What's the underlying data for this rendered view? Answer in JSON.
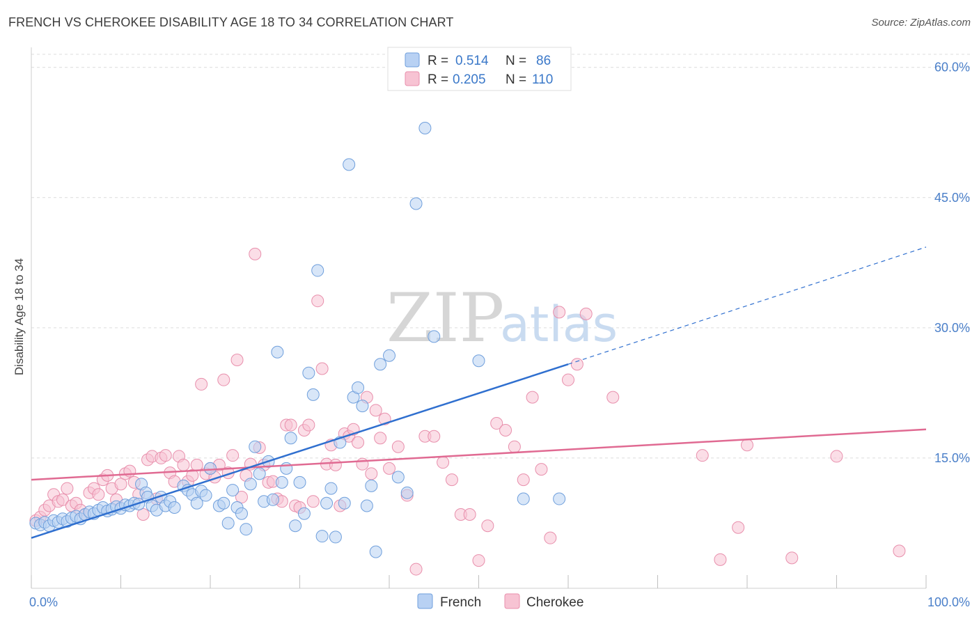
{
  "title": "FRENCH VS CHEROKEE DISABILITY AGE 18 TO 34 CORRELATION CHART",
  "source": "Source: ZipAtlas.com",
  "watermark": {
    "zip": "ZIP",
    "atlas": "atlas"
  },
  "stats": {
    "french": {
      "r_label": "R =",
      "r": "0.514",
      "n_label": "N =",
      "n": "86"
    },
    "cherokee": {
      "r_label": "R =",
      "r": "0.205",
      "n_label": "N =",
      "n": "110"
    }
  },
  "legend": {
    "french": "French",
    "cherokee": "Cherokee"
  },
  "colors": {
    "french_fill": "#b8d1f3",
    "french_stroke": "#6f9fdc",
    "french_line": "#2f6fcf",
    "cherokee_fill": "#f7c3d3",
    "cherokee_stroke": "#e88fac",
    "cherokee_line": "#e06a92",
    "axis_tick": "#4a7fc9",
    "grid": "#dcdcdc"
  },
  "chart_data": {
    "type": "scatter",
    "title": "FRENCH VS CHEROKEE DISABILITY AGE 18 TO 34 CORRELATION CHART",
    "xlabel": "",
    "ylabel": "Disability Age 18 to 34",
    "xlim": [
      0,
      100
    ],
    "ylim": [
      0,
      61.5
    ],
    "x_tick_labels": [
      "0.0%",
      "100.0%"
    ],
    "y_ticks": [
      15,
      30,
      45,
      60
    ],
    "y_tick_labels": [
      "15.0%",
      "30.0%",
      "45.0%",
      "60.0%"
    ],
    "grid": true,
    "legend_position": "bottom-center",
    "series": [
      {
        "name": "French",
        "points": [
          [
            0.5,
            7.5
          ],
          [
            1,
            7.3
          ],
          [
            1.5,
            7.6
          ],
          [
            2,
            7.2
          ],
          [
            2.5,
            7.8
          ],
          [
            3,
            7.6
          ],
          [
            3.5,
            8.0
          ],
          [
            4,
            7.7
          ],
          [
            4.5,
            8.1
          ],
          [
            5,
            8.3
          ],
          [
            5.5,
            8.0
          ],
          [
            6,
            8.5
          ],
          [
            6.5,
            8.8
          ],
          [
            7,
            8.6
          ],
          [
            7.5,
            9.0
          ],
          [
            8,
            9.3
          ],
          [
            8.5,
            8.9
          ],
          [
            9,
            9.1
          ],
          [
            9.5,
            9.4
          ],
          [
            10,
            9.2
          ],
          [
            10.5,
            9.6
          ],
          [
            11,
            9.5
          ],
          [
            11.5,
            9.8
          ],
          [
            12,
            9.7
          ],
          [
            12.3,
            12.0
          ],
          [
            12.8,
            11.0
          ],
          [
            13,
            10.5
          ],
          [
            13.5,
            9.5
          ],
          [
            14,
            9.0
          ],
          [
            14.5,
            10.5
          ],
          [
            15,
            9.5
          ],
          [
            15.5,
            10.0
          ],
          [
            16,
            9.3
          ],
          [
            17,
            11.8
          ],
          [
            17.5,
            11.3
          ],
          [
            18,
            10.8
          ],
          [
            18.5,
            9.8
          ],
          [
            19,
            11.2
          ],
          [
            19.5,
            10.7
          ],
          [
            20,
            13.8
          ],
          [
            21,
            9.5
          ],
          [
            21.5,
            9.8
          ],
          [
            22,
            7.5
          ],
          [
            22.5,
            11.3
          ],
          [
            23,
            9.3
          ],
          [
            23.5,
            8.6
          ],
          [
            24,
            6.8
          ],
          [
            24.5,
            12.0
          ],
          [
            25,
            16.3
          ],
          [
            25.5,
            13.2
          ],
          [
            26,
            10.0
          ],
          [
            26.5,
            14.6
          ],
          [
            27,
            10.2
          ],
          [
            27.5,
            27.2
          ],
          [
            28,
            12.2
          ],
          [
            28.5,
            13.8
          ],
          [
            29,
            17.3
          ],
          [
            29.5,
            7.2
          ],
          [
            30,
            12.2
          ],
          [
            30.5,
            8.6
          ],
          [
            31,
            24.8
          ],
          [
            31.5,
            22.3
          ],
          [
            32,
            36.6
          ],
          [
            32.5,
            6.0
          ],
          [
            33,
            9.8
          ],
          [
            33.5,
            11.5
          ],
          [
            34,
            5.9
          ],
          [
            34.5,
            16.8
          ],
          [
            35,
            9.8
          ],
          [
            35.5,
            48.8
          ],
          [
            36,
            22.0
          ],
          [
            36.5,
            23.1
          ],
          [
            37,
            21.0
          ],
          [
            37.5,
            9.5
          ],
          [
            38,
            11.8
          ],
          [
            38.5,
            4.2
          ],
          [
            39,
            25.8
          ],
          [
            40,
            26.8
          ],
          [
            41,
            12.8
          ],
          [
            42,
            11.0
          ],
          [
            43,
            44.3
          ],
          [
            44,
            53.0
          ],
          [
            45,
            29.0
          ],
          [
            50,
            26.2
          ],
          [
            55,
            10.3
          ],
          [
            59,
            10.3
          ]
        ]
      },
      {
        "name": "Cherokee",
        "points": [
          [
            0.5,
            7.8
          ],
          [
            1,
            8.2
          ],
          [
            1.5,
            9.0
          ],
          [
            2,
            9.5
          ],
          [
            2.5,
            10.8
          ],
          [
            3,
            10.0
          ],
          [
            3.5,
            10.2
          ],
          [
            4,
            11.5
          ],
          [
            4.5,
            9.5
          ],
          [
            5,
            9.8
          ],
          [
            5.5,
            9.0
          ],
          [
            6,
            8.5
          ],
          [
            6.5,
            11.0
          ],
          [
            7,
            11.5
          ],
          [
            7.5,
            10.8
          ],
          [
            8,
            12.5
          ],
          [
            8.5,
            13.0
          ],
          [
            9,
            11.5
          ],
          [
            9.5,
            10.2
          ],
          [
            10,
            12.0
          ],
          [
            10.5,
            13.2
          ],
          [
            11,
            13.5
          ],
          [
            11.5,
            12.2
          ],
          [
            12,
            10.8
          ],
          [
            12.5,
            8.5
          ],
          [
            13,
            14.8
          ],
          [
            13.5,
            15.2
          ],
          [
            14,
            10.3
          ],
          [
            14.5,
            15.0
          ],
          [
            15,
            15.3
          ],
          [
            15.5,
            13.3
          ],
          [
            16,
            12.3
          ],
          [
            16.5,
            15.2
          ],
          [
            17,
            14.2
          ],
          [
            17.5,
            12.3
          ],
          [
            18,
            13.0
          ],
          [
            18.5,
            14.2
          ],
          [
            19,
            23.5
          ],
          [
            19.5,
            13.2
          ],
          [
            20,
            13.8
          ],
          [
            20.5,
            12.8
          ],
          [
            21,
            14.2
          ],
          [
            21.5,
            24.0
          ],
          [
            22,
            13.3
          ],
          [
            22.5,
            15.3
          ],
          [
            23,
            26.3
          ],
          [
            23.5,
            10.5
          ],
          [
            24,
            13.0
          ],
          [
            24.5,
            14.3
          ],
          [
            25,
            38.5
          ],
          [
            25.5,
            16.2
          ],
          [
            26,
            14.2
          ],
          [
            26.5,
            12.2
          ],
          [
            27,
            12.3
          ],
          [
            27.5,
            10.3
          ],
          [
            28,
            10.0
          ],
          [
            28.5,
            18.8
          ],
          [
            29,
            18.8
          ],
          [
            29.5,
            9.5
          ],
          [
            30,
            9.3
          ],
          [
            30.5,
            18.2
          ],
          [
            31,
            18.8
          ],
          [
            31.5,
            10.0
          ],
          [
            32,
            33.1
          ],
          [
            32.5,
            25.3
          ],
          [
            33,
            14.3
          ],
          [
            33.5,
            16.5
          ],
          [
            34,
            14.2
          ],
          [
            34.5,
            9.5
          ],
          [
            35,
            17.8
          ],
          [
            35.5,
            17.5
          ],
          [
            36,
            18.3
          ],
          [
            36.5,
            16.8
          ],
          [
            37,
            14.3
          ],
          [
            37.5,
            22.0
          ],
          [
            38,
            13.2
          ],
          [
            38.5,
            20.5
          ],
          [
            39,
            17.3
          ],
          [
            39.5,
            19.5
          ],
          [
            40,
            13.8
          ],
          [
            41,
            16.3
          ],
          [
            42,
            10.7
          ],
          [
            43,
            2.2
          ],
          [
            44,
            17.5
          ],
          [
            45,
            17.5
          ],
          [
            46,
            14.5
          ],
          [
            47,
            12.5
          ],
          [
            48,
            8.5
          ],
          [
            49,
            8.5
          ],
          [
            50,
            3.2
          ],
          [
            51,
            7.2
          ],
          [
            52,
            19.0
          ],
          [
            53,
            18.2
          ],
          [
            54,
            16.3
          ],
          [
            55,
            12.5
          ],
          [
            56,
            22.0
          ],
          [
            57,
            13.7
          ],
          [
            58,
            5.8
          ],
          [
            59,
            31.8
          ],
          [
            60,
            24.0
          ],
          [
            61,
            25.8
          ],
          [
            62,
            31.6
          ],
          [
            65,
            22.0
          ],
          [
            75,
            15.3
          ],
          [
            77,
            3.3
          ],
          [
            79,
            7.0
          ],
          [
            80,
            16.5
          ],
          [
            85,
            3.5
          ],
          [
            90,
            15.2
          ],
          [
            97,
            4.3
          ]
        ]
      }
    ],
    "trend_lines": [
      {
        "name": "French",
        "solid": [
          [
            0,
            5.8
          ],
          [
            60,
            25.8
          ]
        ],
        "dashed": [
          [
            60,
            25.8
          ],
          [
            100,
            39.3
          ]
        ]
      },
      {
        "name": "Cherokee",
        "solid": [
          [
            0,
            12.5
          ],
          [
            100,
            18.3
          ]
        ]
      }
    ]
  }
}
